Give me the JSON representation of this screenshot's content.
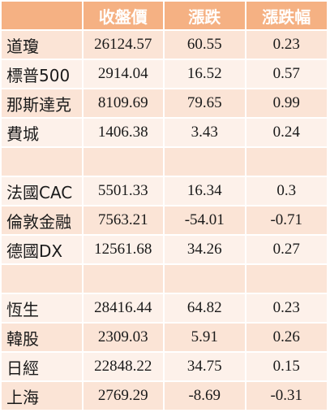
{
  "header": {
    "name": "",
    "close": "收盤價",
    "change": "漲跌",
    "change_pct": "漲跌幅"
  },
  "rows": [
    {
      "name": "道瓊",
      "close": "26124.57",
      "change": "60.55",
      "pct": "0.23"
    },
    {
      "name": "標普500",
      "close": "2914.04",
      "change": "16.52",
      "pct": "0.57"
    },
    {
      "name": "那斯達克",
      "close": "8109.69",
      "change": "79.65",
      "pct": "0.99"
    },
    {
      "name": "費城",
      "close": "1406.38",
      "change": "3.43",
      "pct": "0.24"
    },
    {
      "name": "",
      "close": "",
      "change": "",
      "pct": ""
    },
    {
      "name": "法國CAC",
      "close": "5501.33",
      "change": "16.34",
      "pct": "0.3"
    },
    {
      "name": "倫敦金融",
      "close": "7563.21",
      "change": "-54.01",
      "pct": "-0.71"
    },
    {
      "name": "德國DX",
      "close": "12561.68",
      "change": "34.26",
      "pct": "0.27"
    },
    {
      "name": "",
      "close": "",
      "change": "",
      "pct": ""
    },
    {
      "name": "恆生",
      "close": "28416.44",
      "change": "64.82",
      "pct": "0.23"
    },
    {
      "name": "韓股",
      "close": "2309.03",
      "change": "5.91",
      "pct": "0.26"
    },
    {
      "name": "日經",
      "close": "22848.22",
      "change": "34.75",
      "pct": "0.15"
    },
    {
      "name": "上海",
      "close": "2769.29",
      "change": "-8.69",
      "pct": "-0.31"
    }
  ],
  "colors": {
    "header_bg": "#f5b183",
    "row_dark": "#fbe4d6",
    "row_light": "#fdf1ea"
  }
}
